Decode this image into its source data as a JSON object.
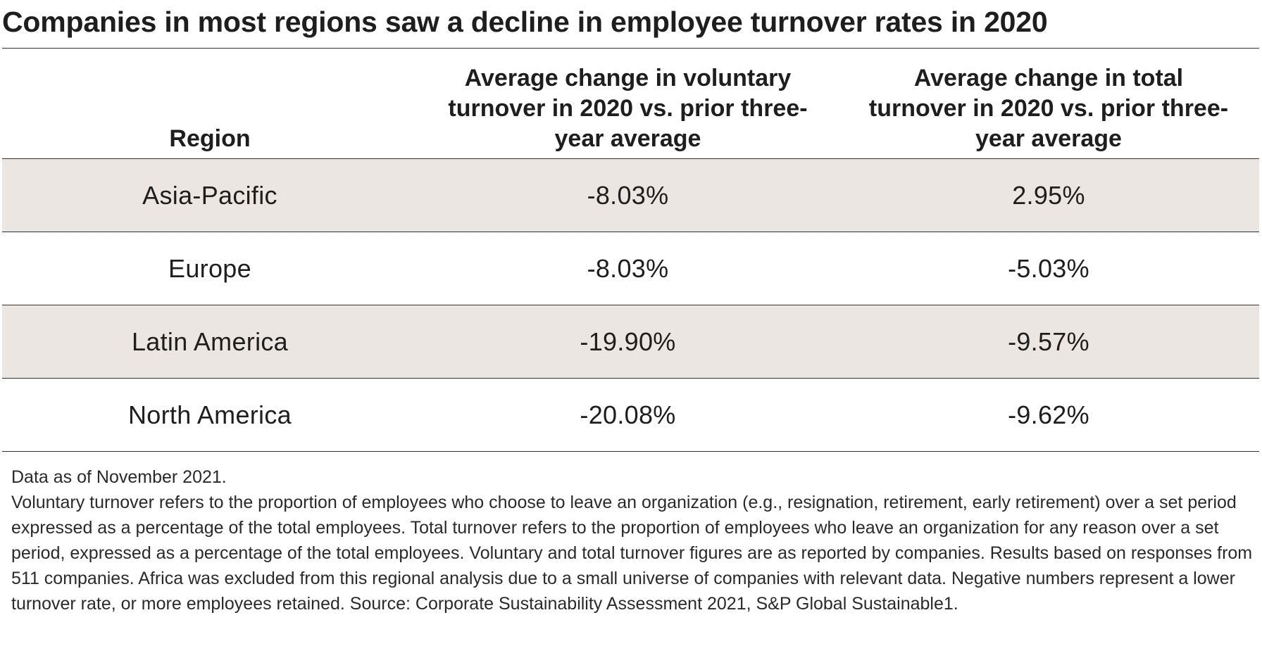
{
  "title": "Companies in most regions saw a decline in employee turnover rates in 2020",
  "chart_data": {
    "type": "table",
    "columns": [
      "Region",
      "Average change in voluntary turnover in 2020 vs. prior three-year average",
      "Average change in total turnover in 2020 vs. prior three-year average"
    ],
    "rows": [
      {
        "region": "Asia-Pacific",
        "voluntary": "-8.03%",
        "total": "2.95%",
        "shaded": true
      },
      {
        "region": "Europe",
        "voluntary": "-8.03%",
        "total": "-5.03%",
        "shaded": false
      },
      {
        "region": "Latin America",
        "voluntary": "-19.90%",
        "total": "-9.57%",
        "shaded": true
      },
      {
        "region": "North America",
        "voluntary": "-20.08%",
        "total": "-9.62%",
        "shaded": false
      }
    ],
    "shade_color": "#ebe6e1"
  },
  "notes": {
    "date_line": "Data as of November 2021.",
    "body": "Voluntary turnover refers to the proportion of employees who choose to leave an organization (e.g., resignation, retirement, early retirement) over a set period expressed as a percentage of the total employees. Total turnover refers to the proportion of employees who leave an organization for any reason over a set period, expressed as a percentage of the total employees. Voluntary and total turnover figures are as reported by companies. Results based on responses from 511 companies. Africa was excluded from this regional analysis due to a small universe of companies with relevant data. Negative numbers represent a lower turnover rate, or more employees retained. Source: Corporate Sustainability Assessment 2021, S&P Global Sustainable1."
  }
}
